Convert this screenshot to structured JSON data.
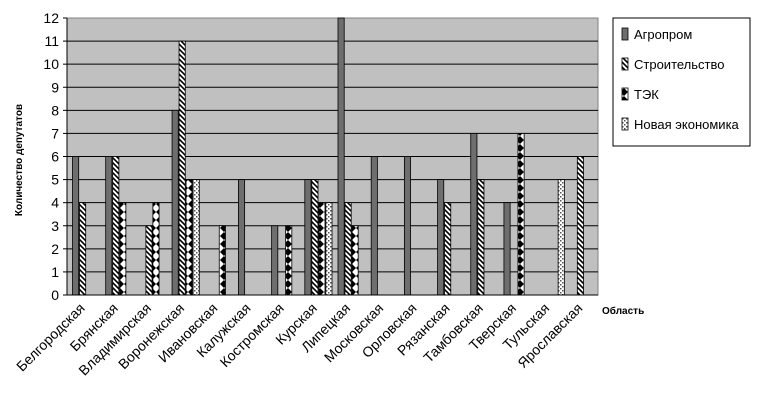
{
  "chart_data": {
    "type": "bar",
    "xlabel": "Область",
    "ylabel": "Количество депутатов",
    "ylim": [
      0,
      12
    ],
    "yticks": [
      0,
      1,
      2,
      3,
      4,
      5,
      6,
      7,
      8,
      9,
      10,
      11,
      12
    ],
    "grid": true,
    "legend_position": "right",
    "plot_background": "#c0c0c0",
    "categories": [
      "Белгородская",
      "Брянская",
      "Владимирская",
      "Воронежская",
      "Ивановская",
      "Калужская",
      "Костромская",
      "Курская",
      "Липецкая",
      "Московская",
      "Орловская",
      "Рязанская",
      "Тамбовская",
      "Тверская",
      "Тульская",
      "Ярославская"
    ],
    "series": [
      {
        "name": "Агропром",
        "pattern": "solid-gray",
        "values": [
          6,
          6,
          0,
          8,
          0,
          5,
          3,
          5,
          12,
          6,
          6,
          5,
          7,
          4,
          0,
          0
        ]
      },
      {
        "name": "Строительство",
        "pattern": "diagonal-stripes",
        "values": [
          4,
          6,
          3,
          11,
          0,
          0,
          0,
          5,
          4,
          0,
          0,
          4,
          5,
          0,
          0,
          6
        ]
      },
      {
        "name": "ТЭК",
        "pattern": "zigzag",
        "values": [
          0,
          4,
          4,
          5,
          3,
          0,
          3,
          4,
          3,
          0,
          0,
          0,
          0,
          7,
          0,
          0
        ]
      },
      {
        "name": "Новая экономика",
        "pattern": "dots",
        "values": [
          0,
          0,
          0,
          5,
          0,
          0,
          0,
          4,
          0,
          0,
          0,
          0,
          0,
          0,
          5,
          0
        ]
      }
    ]
  }
}
